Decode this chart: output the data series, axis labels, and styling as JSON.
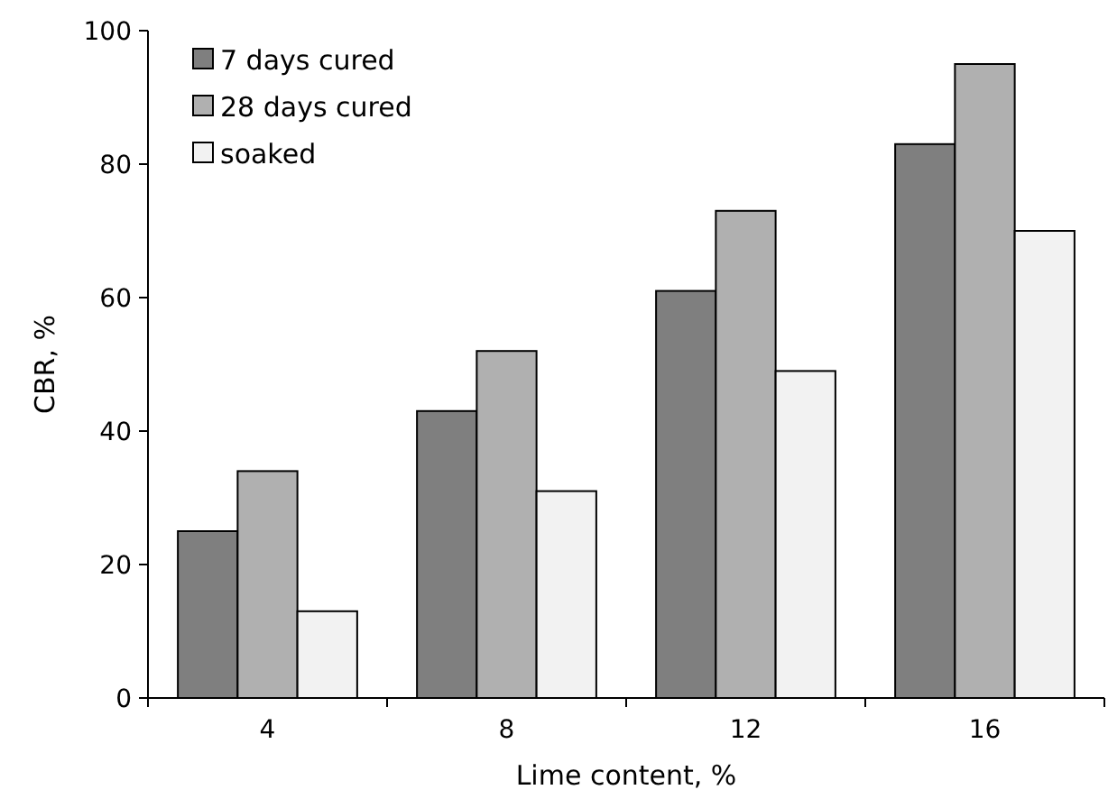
{
  "chart_data": {
    "type": "bar",
    "xlabel": "Lime content, %",
    "ylabel": "CBR, %",
    "categories": [
      "4",
      "8",
      "12",
      "16"
    ],
    "series": [
      {
        "name": "7 days cured",
        "color": "#7f7f7f",
        "values": [
          25,
          43,
          61,
          83
        ]
      },
      {
        "name": "28 days cured",
        "color": "#b0b0b0",
        "values": [
          34,
          52,
          73,
          95
        ]
      },
      {
        "name": "soaked",
        "color": "#f2f2f2",
        "values": [
          13,
          31,
          49,
          70
        ]
      }
    ],
    "ylim": [
      0,
      100
    ],
    "yticks": [
      0,
      20,
      40,
      60,
      80,
      100
    ],
    "grid": false,
    "legend": "top left"
  }
}
